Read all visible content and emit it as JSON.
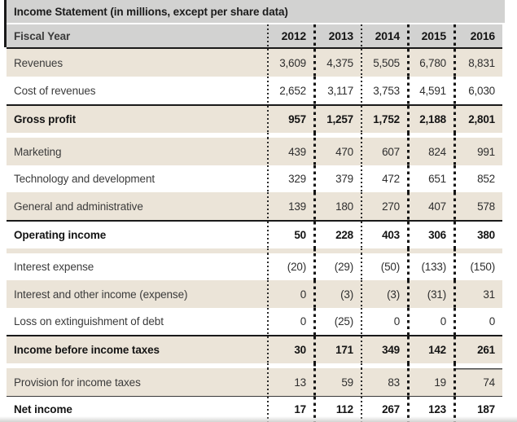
{
  "title": "Income Statement (in millions, except per share data)",
  "colors": {
    "header_bg": "#d2d2d1",
    "row_beige": "#ebe4d8",
    "row_white": "#ffffff",
    "border_dark": "#1a1a1a"
  },
  "table": {
    "header": {
      "label": "Fiscal Year",
      "years": [
        "2012",
        "2013",
        "2014",
        "2015",
        "2016"
      ]
    },
    "rows": [
      {
        "label": "Revenues",
        "bold": false,
        "values": [
          "3,609",
          "4,375",
          "5,505",
          "6,780",
          "8,831"
        ]
      },
      {
        "label": "Cost of revenues",
        "bold": false,
        "values": [
          "2,652",
          "3,117",
          "3,753",
          "4,591",
          "6,030"
        ]
      },
      {
        "label": "Gross profit",
        "bold": true,
        "values": [
          "957",
          "1,257",
          "1,752",
          "2,188",
          "2,801"
        ]
      },
      {
        "label": "Marketing",
        "bold": false,
        "values": [
          "439",
          "470",
          "607",
          "824",
          "991"
        ]
      },
      {
        "label": "Technology and development",
        "bold": false,
        "values": [
          "329",
          "379",
          "472",
          "651",
          "852"
        ]
      },
      {
        "label": "General and administrative",
        "bold": false,
        "values": [
          "139",
          "180",
          "270",
          "407",
          "578"
        ]
      },
      {
        "label": "Operating income",
        "bold": true,
        "values": [
          "50",
          "228",
          "403",
          "306",
          "380"
        ]
      },
      {
        "label": "Interest expense",
        "bold": false,
        "values": [
          "(20)",
          "(29)",
          "(50)",
          "(133)",
          "(150)"
        ]
      },
      {
        "label": "Interest and other income (expense)",
        "bold": false,
        "values": [
          "0",
          "(3)",
          "(3)",
          "(31)",
          "31"
        ]
      },
      {
        "label": "Loss on extinguishment of debt",
        "bold": false,
        "values": [
          "0",
          "(25)",
          "0",
          "0",
          "0"
        ]
      },
      {
        "label": "Income before income taxes",
        "bold": true,
        "values": [
          "30",
          "171",
          "349",
          "142",
          "261"
        ]
      },
      {
        "label": "Provision for income taxes",
        "bold": false,
        "values": [
          "13",
          "59",
          "83",
          "19",
          "74"
        ]
      },
      {
        "label": "Net income",
        "bold": true,
        "values": [
          "17",
          "112",
          "267",
          "123",
          "187"
        ]
      }
    ]
  }
}
